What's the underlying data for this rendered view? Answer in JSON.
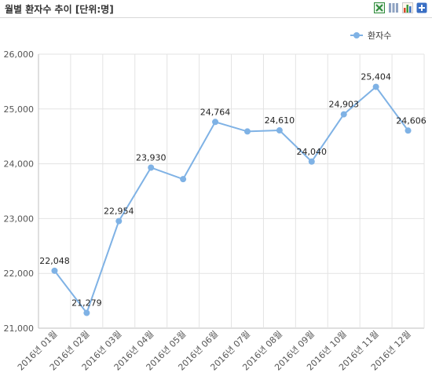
{
  "header": {
    "title": "월별 환자수 추이 [단위:명]"
  },
  "tools": [
    {
      "name": "excel-export-icon",
      "color": "#2e8b3a"
    },
    {
      "name": "table-view-icon",
      "color": "#6a7fa0"
    },
    {
      "name": "bar-chart-icon",
      "color": "#d84a2a"
    },
    {
      "name": "expand-plus-icon",
      "color": "#3a6fc4"
    }
  ],
  "chart_data": {
    "type": "line",
    "title": "",
    "xlabel": "",
    "ylabel": "",
    "categories": [
      "2016년 01월",
      "2016년 02월",
      "2016년 03월",
      "2016년 04월",
      "2016년 05월",
      "2016년 06월",
      "2016년 07월",
      "2016년 08월",
      "2016년 09월",
      "2016년 10월",
      "2016년 11월",
      "2016년 12월"
    ],
    "series": [
      {
        "name": "환자수",
        "color": "#7fb2e5",
        "values": [
          22048,
          21279,
          22954,
          23930,
          23720,
          24764,
          24590,
          24610,
          24040,
          24903,
          25404,
          24606
        ],
        "labels": [
          "22,048",
          "21,279",
          "22,954",
          "23,930",
          null,
          "24,764",
          null,
          "24,610",
          "24,040",
          "24,903",
          "25,404",
          "24,606"
        ]
      }
    ],
    "ylim": [
      21000,
      26000
    ],
    "yticks": [
      21000,
      22000,
      23000,
      24000,
      25000,
      26000
    ],
    "ytick_labels": [
      "21,000",
      "22,000",
      "23,000",
      "24,000",
      "25,000",
      "26,000"
    ],
    "grid": true,
    "legend": "top-right"
  }
}
